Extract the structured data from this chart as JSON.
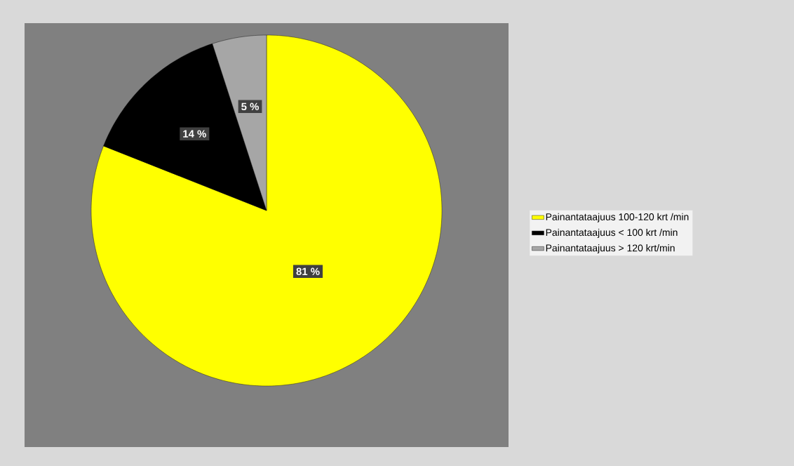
{
  "chart_data": {
    "type": "pie",
    "categories": [
      "Painantataajuus 100-120 krt /min",
      "Painantataajuus < 100 krt /min",
      "Painantataajuus > 120 krt/min"
    ],
    "values": [
      81,
      14,
      5
    ],
    "colors": [
      "#ffff00",
      "#000000",
      "#a6a6a6"
    ],
    "value_labels": [
      "81 %",
      "14 %",
      "5 %"
    ],
    "legend": "right"
  }
}
